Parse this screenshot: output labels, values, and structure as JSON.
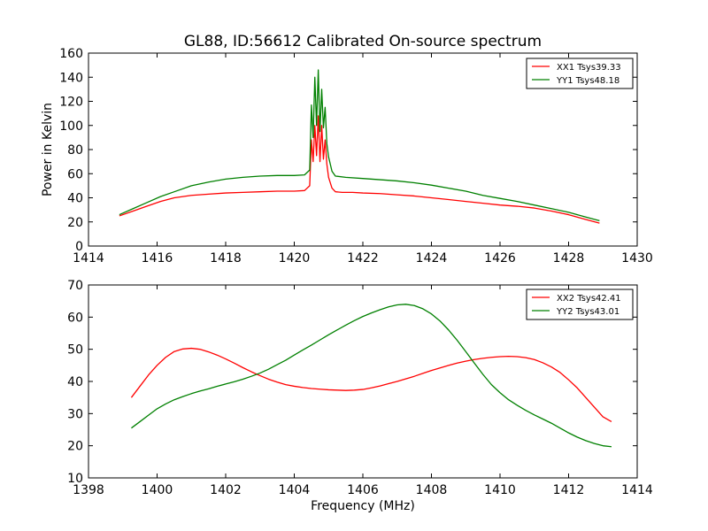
{
  "chart_data": [
    {
      "type": "line",
      "title": "GL88, ID:56612 Calibrated On-source spectrum",
      "xlabel": "",
      "ylabel": "Power in Kelvin",
      "xlim": [
        1414,
        1430
      ],
      "ylim": [
        0,
        160
      ],
      "xticks": [
        1414,
        1416,
        1418,
        1420,
        1422,
        1424,
        1426,
        1428,
        1430
      ],
      "yticks": [
        0,
        20,
        40,
        60,
        80,
        100,
        120,
        140,
        160
      ],
      "grid": false,
      "legend": "top-right",
      "series": [
        {
          "name": "XX1 Tsys39.33",
          "color": "#ff0000",
          "x": [
            1414.9,
            1415.3,
            1415.7,
            1416.1,
            1416.5,
            1417.0,
            1417.5,
            1418.0,
            1418.5,
            1419.0,
            1419.5,
            1420.0,
            1420.3,
            1420.45,
            1420.5,
            1420.55,
            1420.6,
            1420.65,
            1420.7,
            1420.75,
            1420.8,
            1420.85,
            1420.9,
            1420.95,
            1421.0,
            1421.1,
            1421.2,
            1421.4,
            1421.7,
            1422.0,
            1422.5,
            1423.0,
            1423.5,
            1424.0,
            1424.5,
            1425.0,
            1425.5,
            1426.0,
            1426.5,
            1427.0,
            1427.5,
            1428.0,
            1428.5,
            1428.9
          ],
          "values": [
            25,
            29,
            33,
            37,
            40,
            42,
            43,
            44,
            44.5,
            45,
            45.5,
            45.5,
            46,
            50,
            88,
            70,
            100,
            75,
            108,
            70,
            100,
            72,
            88,
            68,
            57,
            48,
            45,
            44.5,
            44.5,
            44,
            43.5,
            42.5,
            41.5,
            40,
            38.5,
            37,
            35.5,
            34,
            33,
            31.5,
            29,
            26,
            22,
            19
          ]
        },
        {
          "name": "YY1 Tsys48.18",
          "color": "#008000",
          "x": [
            1414.9,
            1415.3,
            1415.7,
            1416.1,
            1416.5,
            1417.0,
            1417.5,
            1418.0,
            1418.5,
            1419.0,
            1419.5,
            1420.0,
            1420.3,
            1420.45,
            1420.5,
            1420.55,
            1420.6,
            1420.65,
            1420.7,
            1420.75,
            1420.8,
            1420.85,
            1420.9,
            1420.95,
            1421.0,
            1421.1,
            1421.2,
            1421.5,
            1422.0,
            1422.5,
            1423.0,
            1423.5,
            1424.0,
            1424.5,
            1425.0,
            1425.5,
            1426.0,
            1426.5,
            1427.0,
            1427.5,
            1428.0,
            1428.5,
            1428.9
          ],
          "values": [
            26,
            31,
            36,
            41,
            45,
            50,
            53,
            55.5,
            57,
            58,
            58.5,
            58.5,
            59,
            63,
            117,
            90,
            140,
            100,
            146,
            95,
            130,
            98,
            115,
            85,
            74,
            62,
            58,
            57,
            56,
            55,
            54,
            52.5,
            50.5,
            48,
            45.5,
            42,
            39.5,
            37,
            34,
            31,
            28,
            24,
            21
          ]
        }
      ]
    },
    {
      "type": "line",
      "title": "",
      "xlabel": "Frequency (MHz)",
      "ylabel": "",
      "xlim": [
        1398,
        1414
      ],
      "ylim": [
        10,
        70
      ],
      "xticks": [
        1398,
        1400,
        1402,
        1404,
        1406,
        1408,
        1410,
        1412,
        1414
      ],
      "yticks": [
        10,
        20,
        30,
        40,
        50,
        60,
        70
      ],
      "grid": false,
      "legend": "top-right",
      "series": [
        {
          "name": "XX2 Tsys42.41",
          "color": "#ff0000",
          "x": [
            1399.25,
            1399.5,
            1399.75,
            1400.0,
            1400.25,
            1400.5,
            1400.75,
            1401.0,
            1401.25,
            1401.5,
            1401.75,
            1402.0,
            1402.25,
            1402.5,
            1402.75,
            1403.0,
            1403.25,
            1403.5,
            1403.75,
            1404.0,
            1404.25,
            1404.5,
            1404.75,
            1405.0,
            1405.25,
            1405.5,
            1405.75,
            1406.0,
            1406.25,
            1406.5,
            1406.75,
            1407.0,
            1407.25,
            1407.5,
            1407.75,
            1408.0,
            1408.25,
            1408.5,
            1408.75,
            1409.0,
            1409.25,
            1409.5,
            1409.75,
            1410.0,
            1410.25,
            1410.5,
            1410.75,
            1411.0,
            1411.25,
            1411.5,
            1411.75,
            1412.0,
            1412.25,
            1412.5,
            1412.75,
            1413.0,
            1413.25
          ],
          "values": [
            35,
            38.5,
            42,
            45,
            47.5,
            49.3,
            50.1,
            50.3,
            50.0,
            49.2,
            48.2,
            47.0,
            45.7,
            44.3,
            43.0,
            41.8,
            40.7,
            39.8,
            39.0,
            38.5,
            38.1,
            37.8,
            37.6,
            37.4,
            37.3,
            37.2,
            37.3,
            37.5,
            38.0,
            38.6,
            39.3,
            40.0,
            40.8,
            41.6,
            42.5,
            43.4,
            44.2,
            45.0,
            45.7,
            46.3,
            46.8,
            47.2,
            47.5,
            47.7,
            47.8,
            47.7,
            47.4,
            46.8,
            45.8,
            44.5,
            42.8,
            40.5,
            38.0,
            35.0,
            32.0,
            29.0,
            27.5
          ]
        },
        {
          "name": "YY2 Tsys43.01",
          "color": "#008000",
          "x": [
            1399.25,
            1399.5,
            1399.75,
            1400.0,
            1400.25,
            1400.5,
            1400.75,
            1401.0,
            1401.25,
            1401.5,
            1401.75,
            1402.0,
            1402.25,
            1402.5,
            1402.75,
            1403.0,
            1403.25,
            1403.5,
            1403.75,
            1404.0,
            1404.25,
            1404.5,
            1404.75,
            1405.0,
            1405.25,
            1405.5,
            1405.75,
            1406.0,
            1406.25,
            1406.5,
            1406.75,
            1407.0,
            1407.25,
            1407.5,
            1407.75,
            1408.0,
            1408.25,
            1408.5,
            1408.75,
            1409.0,
            1409.25,
            1409.5,
            1409.75,
            1410.0,
            1410.25,
            1410.5,
            1410.75,
            1411.0,
            1411.25,
            1411.5,
            1411.75,
            1412.0,
            1412.25,
            1412.5,
            1412.75,
            1413.0,
            1413.25
          ],
          "values": [
            25.5,
            27.5,
            29.5,
            31.5,
            33.0,
            34.3,
            35.3,
            36.2,
            37.0,
            37.7,
            38.5,
            39.2,
            39.9,
            40.7,
            41.6,
            42.6,
            43.8,
            45.2,
            46.6,
            48.2,
            49.8,
            51.3,
            52.9,
            54.5,
            56.0,
            57.5,
            58.9,
            60.2,
            61.3,
            62.3,
            63.2,
            63.8,
            64.0,
            63.6,
            62.6,
            61.0,
            58.8,
            56.0,
            52.8,
            49.3,
            45.7,
            42.2,
            39.0,
            36.5,
            34.3,
            32.6,
            31.0,
            29.6,
            28.3,
            27.0,
            25.5,
            24.0,
            22.7,
            21.6,
            20.7,
            20.0,
            19.7
          ]
        }
      ]
    }
  ]
}
